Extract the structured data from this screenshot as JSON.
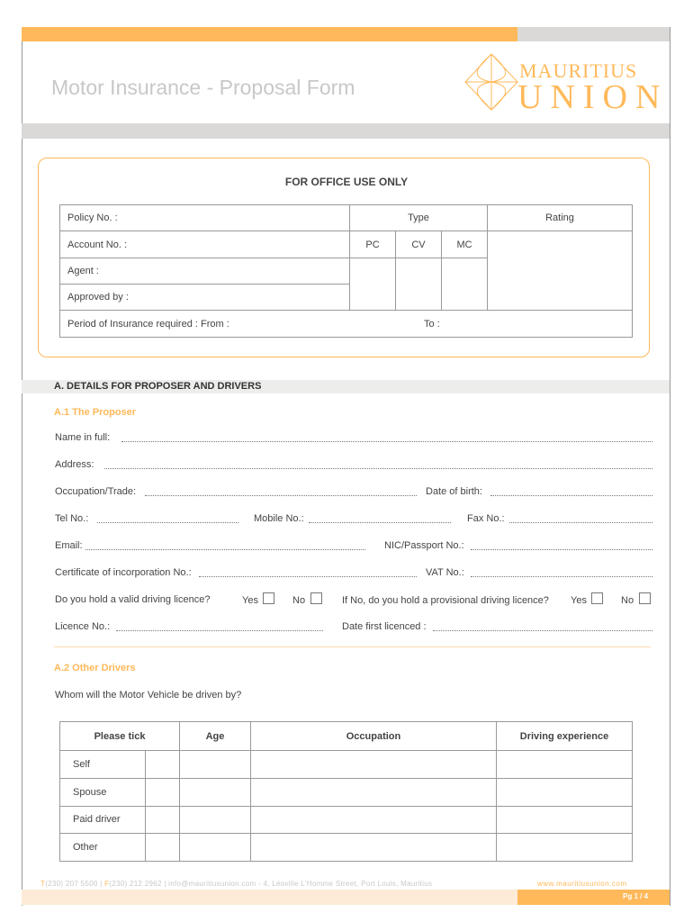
{
  "header": {
    "title": "Motor Insurance - Proposal Form",
    "logo_line1": "MAURITIUS",
    "logo_line2": "UNION"
  },
  "office": {
    "title": "FOR OFFICE USE ONLY",
    "policy": "Policy No. :",
    "type": "Type",
    "rating": "Rating",
    "account": "Account No. :",
    "pc": "PC",
    "cv": "CV",
    "mc": "MC",
    "agent": "Agent :",
    "approved": "Approved by :",
    "period": "Period of Insurance required :  From :",
    "to": "To :"
  },
  "sectionA": {
    "title": "A. DETAILS FOR PROPOSER AND DRIVERS",
    "a1": "A.1  The Proposer",
    "name": "Name in full:",
    "address": "Address:",
    "occupation": "Occupation/Trade:",
    "dob": "Date of birth:",
    "tel": "Tel No.:",
    "mobile": "Mobile No.:",
    "fax": "Fax No.:",
    "email": "Email:",
    "nic": "NIC/Passport No.:",
    "cert": "Certificate of incorporation No.:",
    "vat": "VAT No.:",
    "licence_q": "Do you hold a valid driving licence?",
    "yes": "Yes",
    "no": "No",
    "prov_q": "If No, do you hold a provisional driving licence?",
    "licence_no": "Licence No.:",
    "date_first": "Date first licenced :",
    "a2": "A.2  Other Drivers",
    "whom": "Whom will the Motor Vehicle be driven by?",
    "drivers": {
      "headers": [
        "Please tick",
        "Age",
        "Occupation",
        "Driving experience"
      ],
      "rows": [
        "Self",
        "Spouse",
        "Paid driver",
        "Other"
      ]
    }
  },
  "footer": {
    "t": "T",
    "tel": "(230) 207 5500 | ",
    "f": "F",
    "fax": "(230) 212 2962 | info@mauritiusunion.com - 4, Léoville L'Homme Street, Port Louis, Mauritius",
    "web": "www.mauritiusunion.com",
    "page": "Pg 1 / 4"
  },
  "colors": {
    "orange": "#ffb95a",
    "grey": "#dad9d7",
    "light_orange": "#fdebd8"
  }
}
